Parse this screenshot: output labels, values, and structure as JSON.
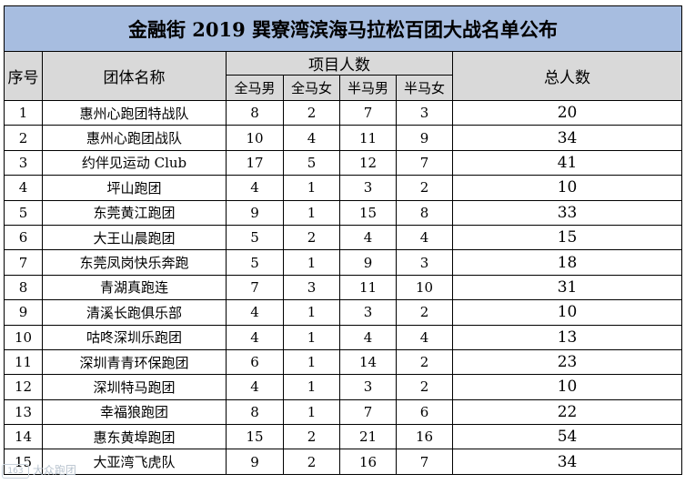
{
  "title": "金融街 2019 巽寮湾滨海马拉松百团大战名单公布",
  "headers": {
    "no": "序号",
    "team": "团体名称",
    "group": "项目人数",
    "full_m": "全马男",
    "full_f": "全马女",
    "half_m": "半马男",
    "half_f": "半马女",
    "total": "总人数"
  },
  "rows": [
    {
      "no": "1",
      "team": "惠州心跑团特战队",
      "full_m": "8",
      "full_f": "2",
      "half_m": "7",
      "half_f": "3",
      "total": "20"
    },
    {
      "no": "2",
      "team": "惠州心跑团战队",
      "full_m": "10",
      "full_f": "4",
      "half_m": "11",
      "half_f": "9",
      "total": "34"
    },
    {
      "no": "3",
      "team": "约伴见运动 Club",
      "full_m": "17",
      "full_f": "5",
      "half_m": "12",
      "half_f": "7",
      "total": "41"
    },
    {
      "no": "4",
      "team": "坪山跑团",
      "full_m": "4",
      "full_f": "1",
      "half_m": "3",
      "half_f": "2",
      "total": "10"
    },
    {
      "no": "5",
      "team": "东莞黄江跑团",
      "full_m": "9",
      "full_f": "1",
      "half_m": "15",
      "half_f": "8",
      "total": "33"
    },
    {
      "no": "6",
      "team": "大王山晨跑团",
      "full_m": "5",
      "full_f": "2",
      "half_m": "4",
      "half_f": "4",
      "total": "15"
    },
    {
      "no": "7",
      "team": "东莞凤岗快乐奔跑",
      "full_m": "5",
      "full_f": "1",
      "half_m": "9",
      "half_f": "3",
      "total": "18"
    },
    {
      "no": "8",
      "team": "青湖真跑连",
      "full_m": "7",
      "full_f": "3",
      "half_m": "11",
      "half_f": "10",
      "total": "31"
    },
    {
      "no": "9",
      "team": "清溪长跑俱乐部",
      "full_m": "4",
      "full_f": "1",
      "half_m": "3",
      "half_f": "2",
      "total": "10"
    },
    {
      "no": "10",
      "team": "咕咚深圳乐跑团",
      "full_m": "4",
      "full_f": "1",
      "half_m": "4",
      "half_f": "4",
      "total": "13"
    },
    {
      "no": "11",
      "team": "深圳青青环保跑团",
      "full_m": "6",
      "full_f": "1",
      "half_m": "14",
      "half_f": "2",
      "total": "23"
    },
    {
      "no": "12",
      "team": "深圳特马跑团",
      "full_m": "4",
      "full_f": "1",
      "half_m": "3",
      "half_f": "2",
      "total": "10"
    },
    {
      "no": "13",
      "team": "幸福狼跑团",
      "full_m": "8",
      "full_f": "1",
      "half_m": "7",
      "half_f": "6",
      "total": "22"
    },
    {
      "no": "14",
      "team": "惠东黄埠跑团",
      "full_m": "15",
      "full_f": "2",
      "half_m": "21",
      "half_f": "16",
      "total": "54"
    },
    {
      "no": "15",
      "team": "大亚湾飞虎队",
      "full_m": "9",
      "full_f": "2",
      "half_m": "16",
      "half_f": "7",
      "total": "34"
    }
  ],
  "watermark": {
    "icon_text": "163",
    "text": "大众跑团"
  }
}
